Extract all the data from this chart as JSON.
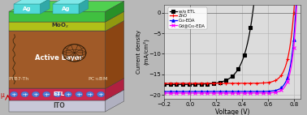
{
  "plot_xlim": [
    -0.2,
    0.85
  ],
  "plot_ylim": [
    -21,
    2
  ],
  "xlabel": "Voltage (V)",
  "ylabel": "Current density\n(mA/cm²)",
  "xticks": [
    -0.2,
    0.0,
    0.2,
    0.4,
    0.6,
    0.8
  ],
  "yticks": [
    0,
    -5,
    -10,
    -15,
    -20
  ],
  "legend_labels": [
    "w/o ETL",
    "ZnO",
    "C₆₀-EDA",
    "Gd@C₈₂-EDA"
  ],
  "colors": [
    "black",
    "red",
    "blue",
    "magenta"
  ],
  "markers": [
    "s",
    "+",
    "^",
    "x"
  ],
  "bg_color": "#dcdcdc",
  "grid_color": "#b0b0b0",
  "fig_bg": "#b8b8b8",
  "layer_colors": {
    "ito_top": "#d8d8e8",
    "ito_side": "#b0b0c0",
    "ito_front": "#c8c8d8",
    "etl_top": "#e03060",
    "etl_side": "#b02040",
    "etl_front": "#cc2850",
    "active_top": "#c8824a",
    "active_side": "#8B4513",
    "active_front": "#a05a28",
    "moo_top": "#c8d820",
    "moo_side": "#909810",
    "moo_front": "#b0c018",
    "ag_top": "#50d050",
    "ag_side": "#289028",
    "ag_front": "#40c040",
    "ag_elec": "#50d8d8",
    "ag_elec_side": "#30a8a8"
  }
}
